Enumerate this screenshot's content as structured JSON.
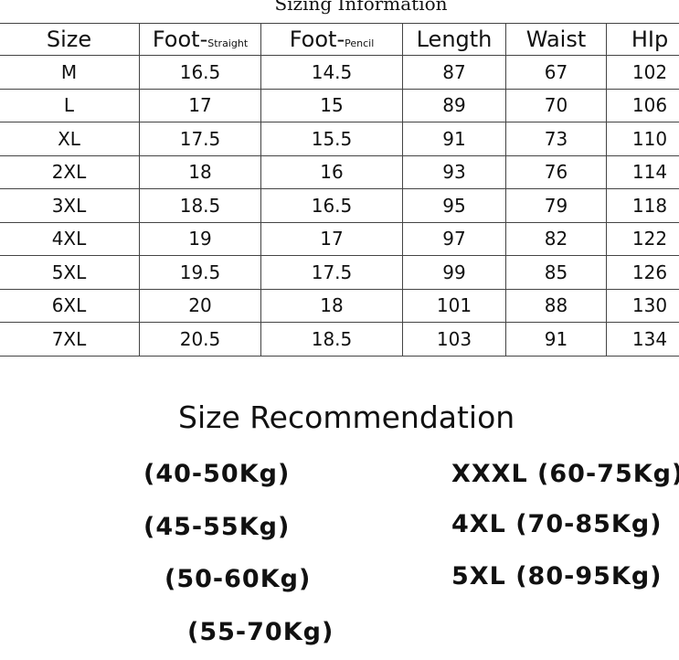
{
  "title": "Sizing Information",
  "table": {
    "headers": [
      {
        "main": "Size"
      },
      {
        "main": "Foot-",
        "sub": "Straight"
      },
      {
        "main": "Foot-",
        "sub": "Pencil"
      },
      {
        "main": "Length"
      },
      {
        "main": "Waist"
      },
      {
        "main": "HIp"
      }
    ],
    "rows": [
      [
        "M",
        16.5,
        14.5,
        87,
        67,
        102
      ],
      [
        "L",
        17,
        15,
        89,
        70,
        106
      ],
      [
        "XL",
        17.5,
        15.5,
        91,
        73,
        110
      ],
      [
        "2XL",
        18,
        16,
        93,
        76,
        114
      ],
      [
        "3XL",
        18.5,
        16.5,
        95,
        79,
        118
      ],
      [
        "4XL",
        19,
        17,
        97,
        82,
        122
      ],
      [
        "5XL",
        19.5,
        17.5,
        99,
        85,
        126
      ],
      [
        "6XL",
        20,
        18,
        101,
        88,
        130
      ],
      [
        "7XL",
        20.5,
        18.5,
        103,
        91,
        134
      ]
    ]
  },
  "recommendation": {
    "title": "Size Recommendation",
    "left": [
      "(40-50Kg)",
      "(45-55Kg)",
      "(50-60Kg)",
      "(55-70Kg)"
    ],
    "right": [
      "XXXL (60-75Kg)",
      "4XL (70-85Kg)",
      "5XL (80-95Kg)"
    ]
  }
}
